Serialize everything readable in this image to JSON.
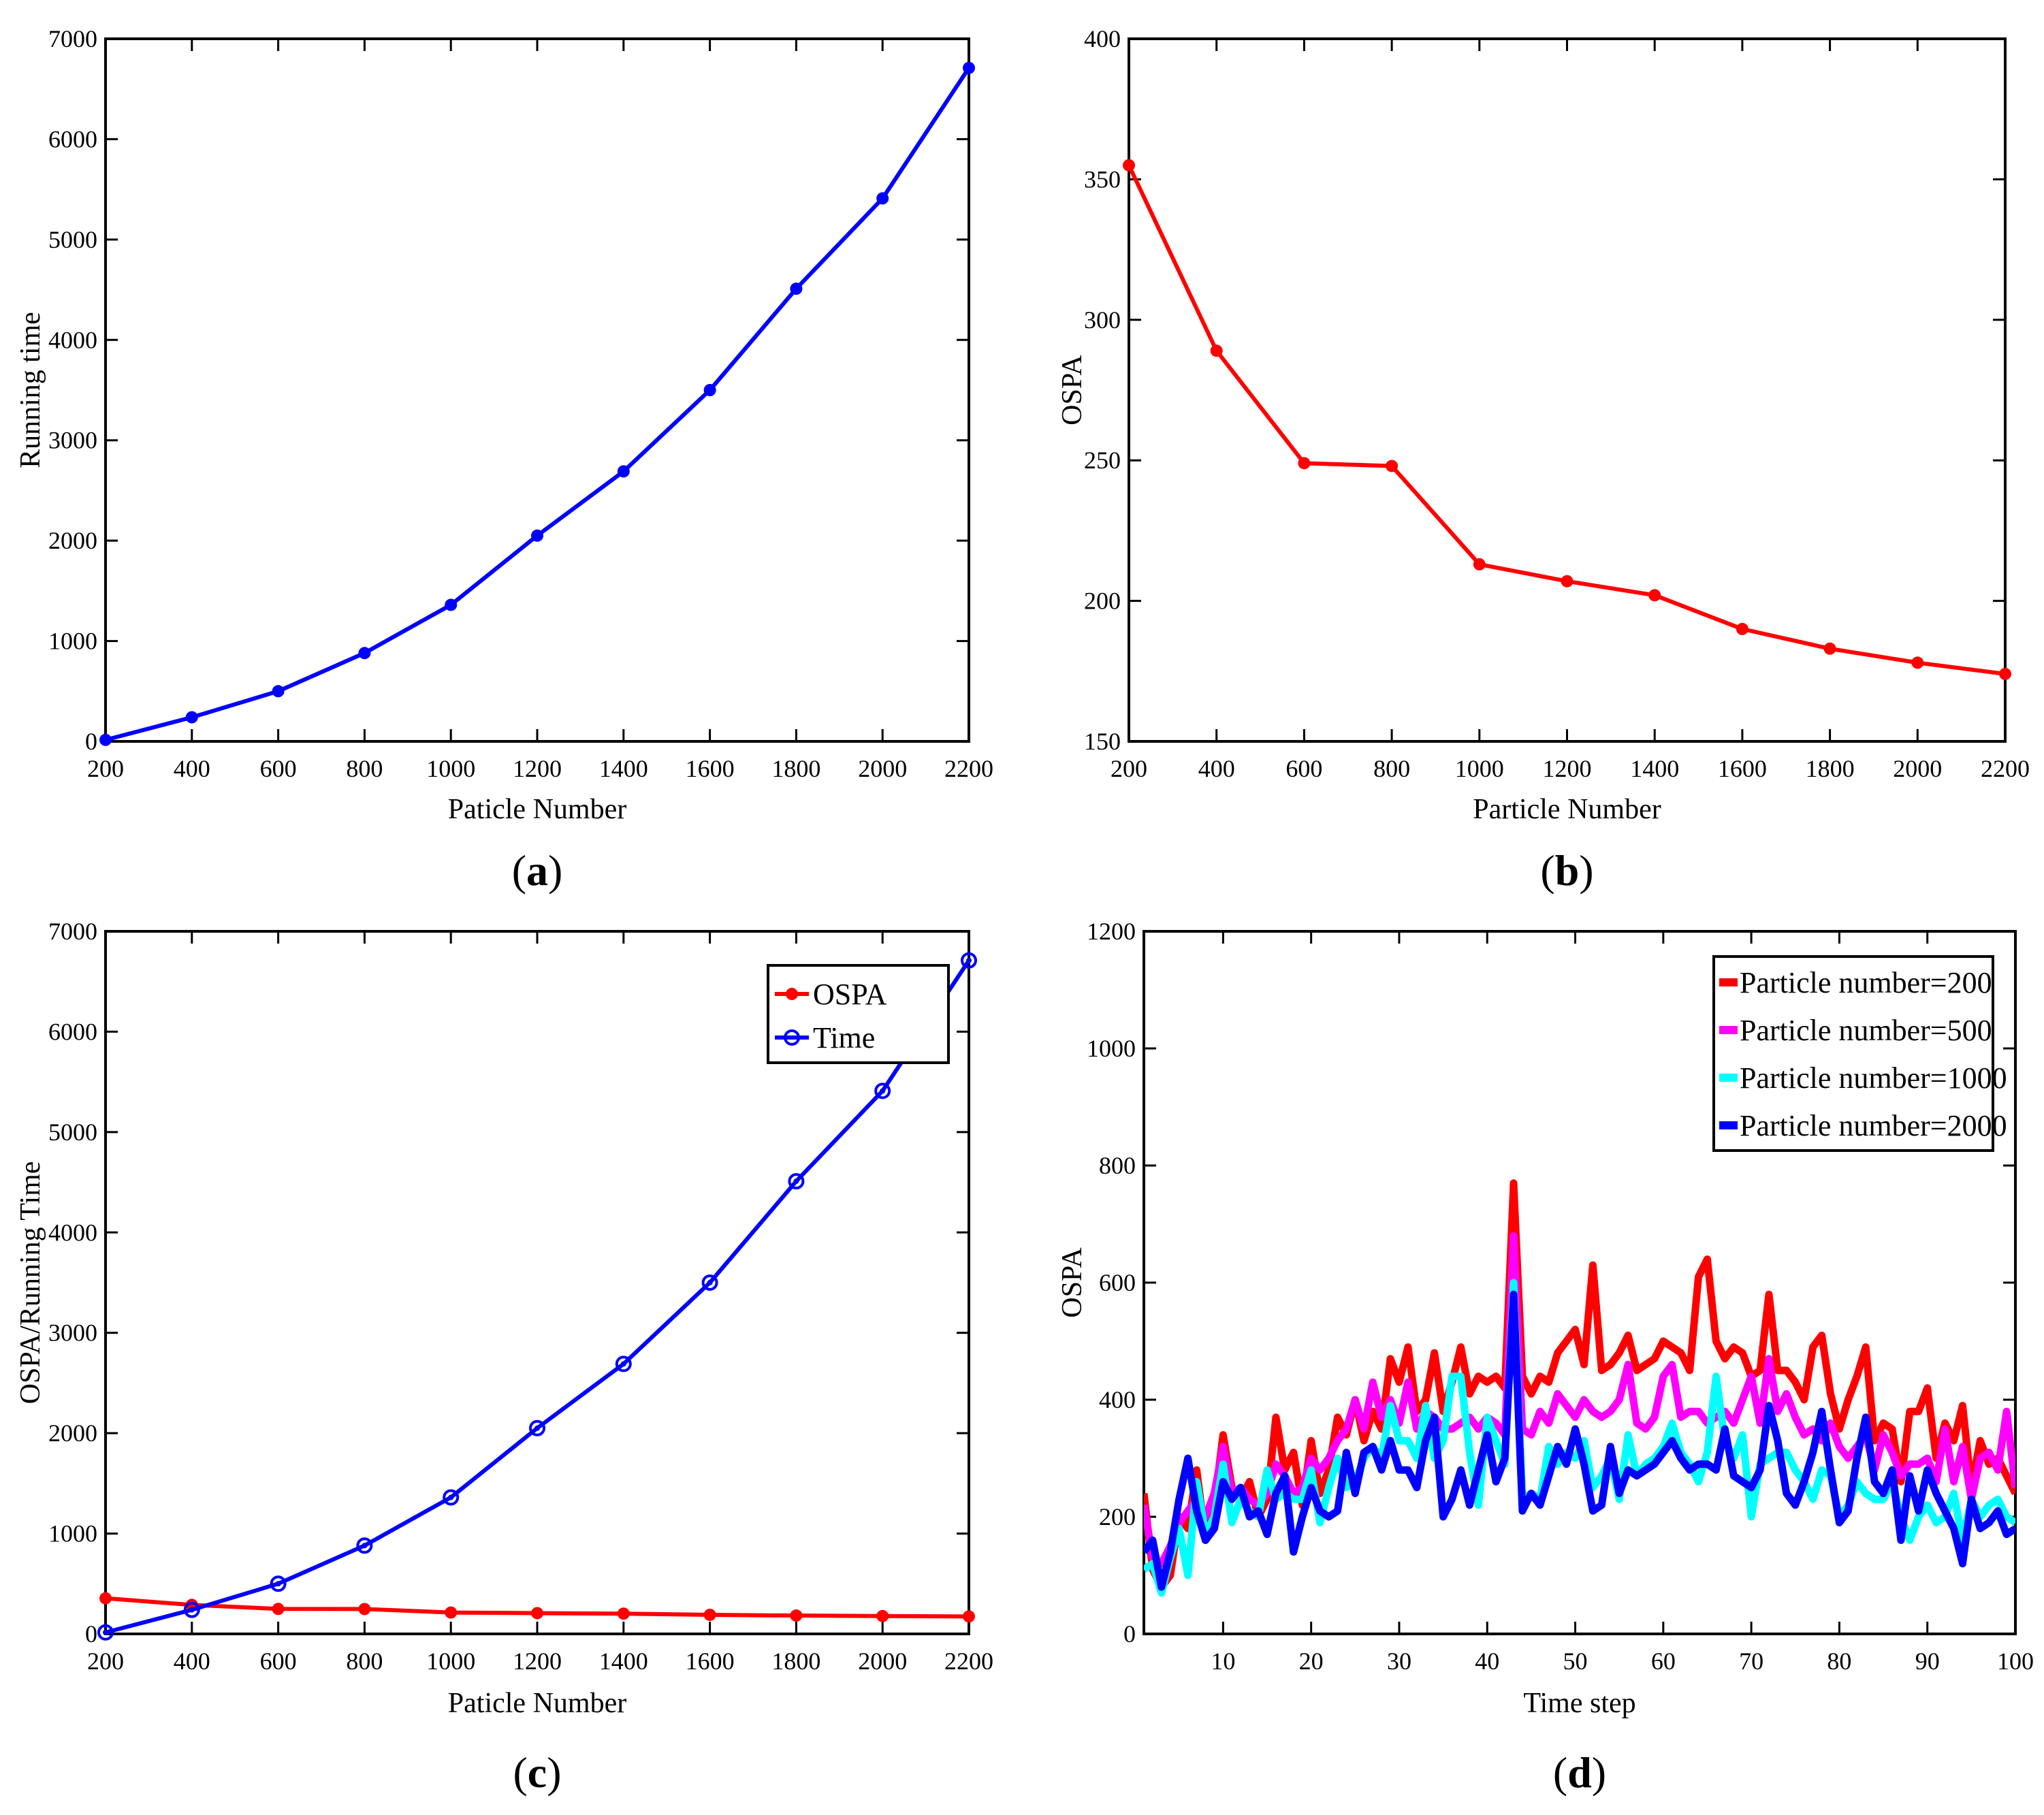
{
  "chart_data": [
    {
      "type": "line",
      "panel": "a",
      "panel_label": "a",
      "xlabel": "Paticle Number",
      "ylabel": "Running time",
      "xlim": [
        200,
        2200
      ],
      "ylim": [
        0,
        7000
      ],
      "xticks": [
        200,
        400,
        600,
        800,
        1000,
        1200,
        1400,
        1600,
        1800,
        2000,
        2200
      ],
      "yticks": [
        0,
        1000,
        2000,
        3000,
        4000,
        5000,
        6000,
        7000
      ],
      "x": [
        200,
        400,
        600,
        800,
        1000,
        1200,
        1400,
        1600,
        1800,
        2000,
        2200
      ],
      "series": [
        {
          "name": "",
          "color": "#0000ff",
          "marker": "dot",
          "values": [
            15,
            240,
            500,
            880,
            1360,
            2050,
            2690,
            3500,
            4510,
            5410,
            6710
          ]
        }
      ],
      "grid": false
    },
    {
      "type": "line",
      "panel": "b",
      "panel_label": "b",
      "xlabel": "Particle Number",
      "ylabel": "OSPA",
      "xlim": [
        200,
        2200
      ],
      "ylim": [
        150,
        400
      ],
      "xticks": [
        200,
        400,
        600,
        800,
        1000,
        1200,
        1400,
        1600,
        1800,
        2000,
        2200
      ],
      "yticks": [
        150,
        200,
        250,
        300,
        350,
        400
      ],
      "x": [
        200,
        400,
        600,
        800,
        1000,
        1200,
        1400,
        1600,
        1800,
        2000,
        2200
      ],
      "series": [
        {
          "name": "",
          "color": "#ff0000",
          "marker": "dot",
          "values": [
            355,
            289,
            249,
            248,
            213,
            207,
            202,
            190,
            183,
            178,
            174
          ]
        }
      ],
      "grid": false
    },
    {
      "type": "line",
      "panel": "c",
      "panel_label": "c",
      "xlabel": "Paticle Number",
      "ylabel": "OSPA/Running Time",
      "xlim": [
        200,
        2200
      ],
      "ylim": [
        0,
        7000
      ],
      "xticks": [
        200,
        400,
        600,
        800,
        1000,
        1200,
        1400,
        1600,
        1800,
        2000,
        2200
      ],
      "yticks": [
        0,
        1000,
        2000,
        3000,
        4000,
        5000,
        6000,
        7000
      ],
      "x": [
        200,
        400,
        600,
        800,
        1000,
        1200,
        1400,
        1600,
        1800,
        2000,
        2200
      ],
      "series": [
        {
          "name": "OSPA",
          "color": "#ff0000",
          "marker": "dot",
          "values": [
            355,
            289,
            249,
            248,
            213,
            207,
            202,
            190,
            183,
            178,
            174
          ]
        },
        {
          "name": "Time",
          "color": "#0000ff",
          "marker": "circle",
          "values": [
            15,
            240,
            500,
            880,
            1360,
            2050,
            2690,
            3500,
            4510,
            5410,
            6710
          ]
        }
      ],
      "legend": "top-right",
      "grid": false
    },
    {
      "type": "line",
      "panel": "d",
      "panel_label": "d",
      "xlabel": "Time step",
      "ylabel": "OSPA",
      "xlim": [
        1,
        100
      ],
      "ylim": [
        0,
        1200
      ],
      "xticks": [
        10,
        20,
        30,
        40,
        50,
        60,
        70,
        80,
        90,
        100
      ],
      "yticks": [
        0,
        200,
        400,
        600,
        800,
        1000,
        1200
      ],
      "x": [
        1,
        2,
        3,
        4,
        5,
        6,
        7,
        8,
        9,
        10,
        11,
        12,
        13,
        14,
        15,
        16,
        17,
        18,
        19,
        20,
        21,
        22,
        23,
        24,
        25,
        26,
        27,
        28,
        29,
        30,
        31,
        32,
        33,
        34,
        35,
        36,
        37,
        38,
        39,
        40,
        41,
        42,
        43,
        44,
        45,
        46,
        47,
        48,
        49,
        50,
        51,
        52,
        53,
        54,
        55,
        56,
        57,
        58,
        59,
        60,
        61,
        62,
        63,
        64,
        65,
        66,
        67,
        68,
        69,
        70,
        71,
        72,
        73,
        74,
        75,
        76,
        77,
        78,
        79,
        80,
        81,
        82,
        83,
        84,
        85,
        86,
        87,
        88,
        89,
        90,
        91,
        92,
        93,
        94,
        95,
        96,
        97,
        98,
        99,
        100
      ],
      "series": [
        {
          "name": "Particle number=200",
          "color": "#ff0000",
          "values": [
            240,
            110,
            80,
            100,
            200,
            180,
            280,
            160,
            220,
            340,
            250,
            230,
            260,
            200,
            230,
            370,
            280,
            310,
            220,
            330,
            240,
            280,
            370,
            340,
            400,
            330,
            380,
            350,
            470,
            430,
            490,
            380,
            400,
            480,
            380,
            430,
            490,
            410,
            440,
            430,
            440,
            420,
            770,
            440,
            410,
            440,
            430,
            480,
            500,
            520,
            460,
            630,
            450,
            460,
            480,
            510,
            450,
            460,
            470,
            500,
            490,
            480,
            450,
            610,
            640,
            500,
            470,
            490,
            480,
            440,
            450,
            580,
            450,
            450,
            430,
            400,
            490,
            510,
            410,
            350,
            400,
            440,
            490,
            330,
            360,
            350,
            260,
            380,
            380,
            420,
            300,
            360,
            330,
            390,
            250,
            330,
            290,
            300,
            270,
            240
          ]
        },
        {
          "name": "Particle number=500",
          "color": "#ff00ff",
          "values": [
            220,
            130,
            120,
            150,
            190,
            210,
            230,
            200,
            240,
            320,
            240,
            250,
            230,
            220,
            240,
            290,
            270,
            240,
            250,
            300,
            280,
            300,
            330,
            350,
            400,
            350,
            430,
            370,
            400,
            360,
            430,
            350,
            380,
            370,
            350,
            350,
            360,
            370,
            350,
            370,
            360,
            340,
            680,
            350,
            340,
            380,
            360,
            410,
            390,
            370,
            400,
            380,
            370,
            380,
            400,
            460,
            360,
            350,
            370,
            440,
            460,
            370,
            380,
            380,
            360,
            370,
            380,
            360,
            400,
            440,
            360,
            470,
            380,
            410,
            370,
            340,
            350,
            330,
            360,
            320,
            300,
            320,
            340,
            280,
            340,
            310,
            270,
            290,
            290,
            300,
            260,
            350,
            260,
            320,
            230,
            300,
            310,
            280,
            380,
            250
          ]
        },
        {
          "name": "Particle number=1000",
          "color": "#00ffff",
          "values": [
            110,
            120,
            70,
            130,
            180,
            100,
            260,
            170,
            200,
            290,
            190,
            230,
            210,
            200,
            280,
            230,
            240,
            230,
            230,
            280,
            190,
            250,
            300,
            250,
            260,
            300,
            320,
            300,
            390,
            330,
            330,
            300,
            390,
            300,
            330,
            440,
            440,
            310,
            220,
            370,
            330,
            290,
            600,
            230,
            240,
            230,
            320,
            290,
            310,
            300,
            330,
            250,
            270,
            300,
            230,
            340,
            270,
            290,
            300,
            320,
            360,
            310,
            290,
            260,
            310,
            440,
            330,
            300,
            340,
            200,
            290,
            300,
            310,
            310,
            280,
            260,
            230,
            280,
            270,
            200,
            220,
            260,
            240,
            230,
            230,
            260,
            200,
            160,
            200,
            220,
            190,
            200,
            240,
            160,
            230,
            200,
            220,
            230,
            200,
            190
          ]
        },
        {
          "name": "Particle number=2000",
          "color": "#0000ff",
          "values": [
            140,
            160,
            80,
            140,
            230,
            300,
            210,
            160,
            180,
            260,
            230,
            250,
            200,
            210,
            170,
            240,
            270,
            140,
            200,
            250,
            210,
            200,
            210,
            310,
            240,
            310,
            320,
            280,
            330,
            280,
            280,
            250,
            330,
            370,
            200,
            230,
            280,
            220,
            280,
            340,
            260,
            300,
            580,
            210,
            240,
            220,
            270,
            320,
            290,
            350,
            290,
            210,
            220,
            320,
            240,
            280,
            270,
            280,
            290,
            310,
            330,
            300,
            280,
            290,
            290,
            280,
            350,
            270,
            260,
            250,
            280,
            390,
            330,
            240,
            220,
            260,
            310,
            380,
            280,
            190,
            210,
            300,
            370,
            260,
            240,
            280,
            160,
            270,
            210,
            280,
            240,
            210,
            180,
            120,
            230,
            180,
            190,
            210,
            170,
            180
          ]
        }
      ],
      "legend": "top-right",
      "grid": false
    }
  ]
}
